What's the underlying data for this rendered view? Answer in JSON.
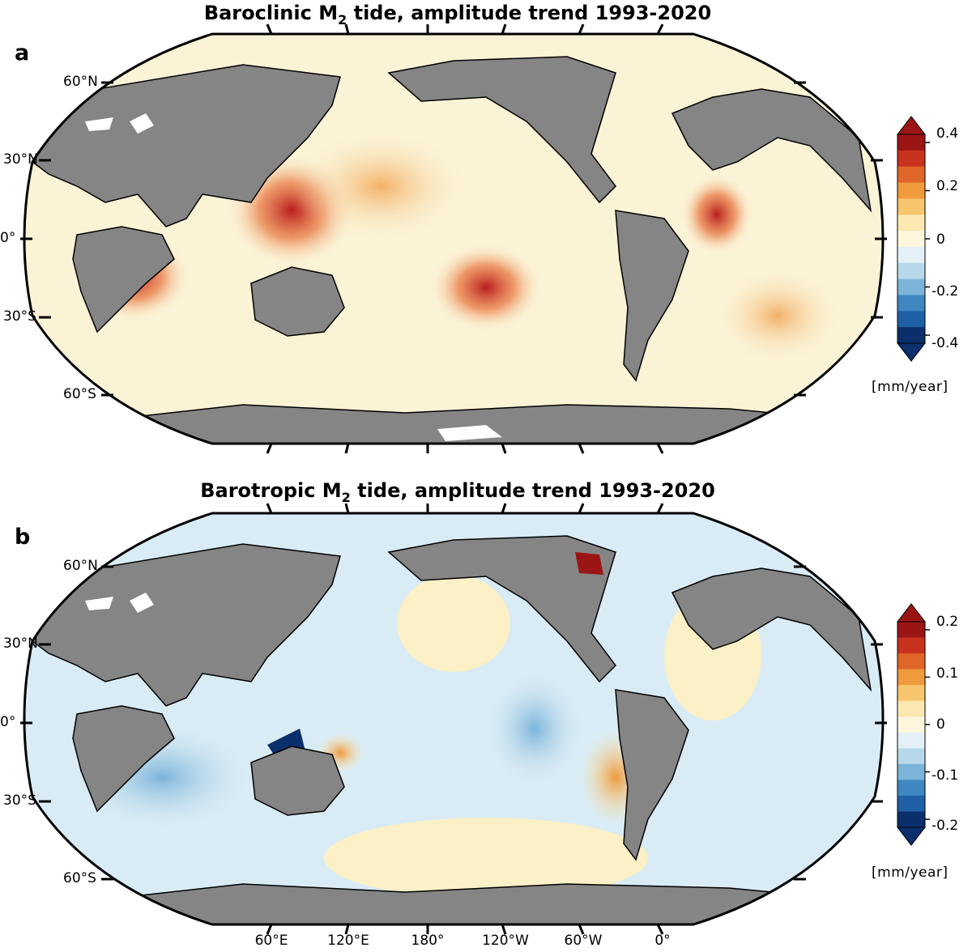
{
  "panels": [
    {
      "letter": "a",
      "title_pre": "Baroclinic M",
      "title_sub": "2",
      "title_post": " tide, amplitude trend 1993-2020",
      "lat_labels": [
        "60°N",
        "30°N",
        "0°",
        "30°S",
        "60°S"
      ],
      "colorbar": {
        "ticks": [
          "0.4",
          "0.2",
          "0",
          "-0.2",
          "-0.4"
        ],
        "unit": "[mm/year]",
        "colors": [
          "#0a2f6b",
          "#1f5fa6",
          "#3f87c0",
          "#7bb3d9",
          "#b7d8eb",
          "#e3f1f7",
          "#fbf6dc",
          "#fce8b0",
          "#f7c56b",
          "#ef9a3d",
          "#e06528",
          "#c8321e",
          "#9c1515"
        ]
      }
    },
    {
      "letter": "b",
      "title_pre": "Barotropic M",
      "title_sub": "2",
      "title_post": " tide, amplitude trend 1993-2020",
      "lat_labels": [
        "60°N",
        "30°N",
        "0°",
        "30°S",
        "60°S"
      ],
      "lon_labels": [
        "60°E",
        "120°E",
        "180°",
        "120°W",
        "60°W",
        "0°"
      ],
      "colorbar": {
        "ticks": [
          "0.2",
          "0.1",
          "0",
          "-0.1",
          "-0.2"
        ],
        "unit": "[mm/year]",
        "colors": [
          "#0a2f6b",
          "#1f5fa6",
          "#3f87c0",
          "#7bb3d9",
          "#b7d8eb",
          "#e3f1f7",
          "#fbf6dc",
          "#fce8b0",
          "#f7c56b",
          "#ef9a3d",
          "#e06528",
          "#c8321e",
          "#9c1515"
        ]
      }
    }
  ],
  "colors": {
    "land": "#858585",
    "ocean_neutral": "#fbf3d6",
    "frame": "#000000"
  }
}
